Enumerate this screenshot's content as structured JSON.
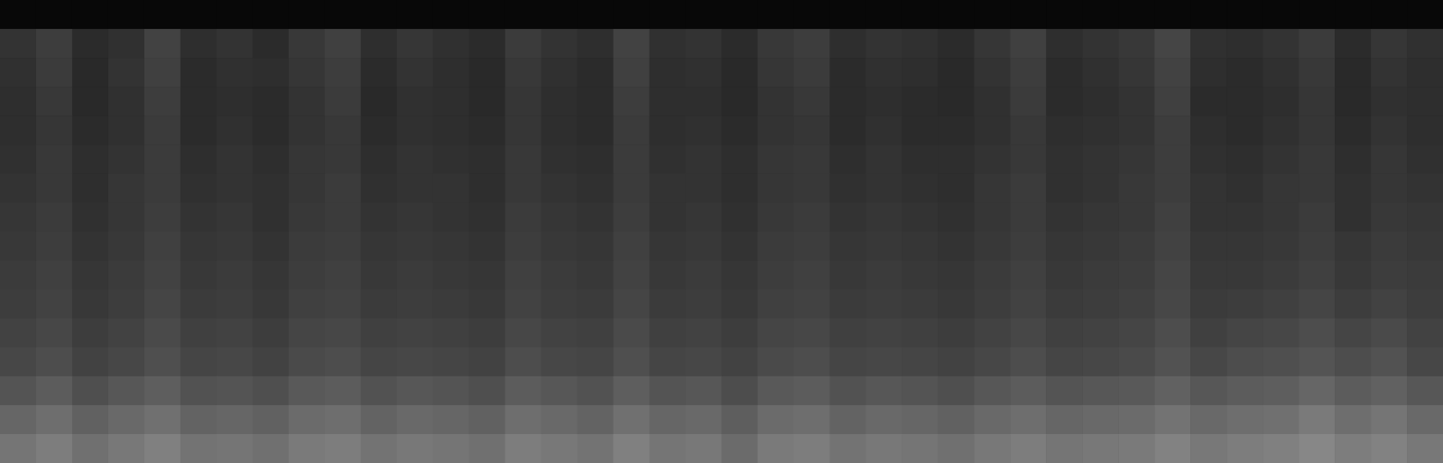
{
  "chart_data": {
    "type": "heatmap",
    "color": "gray",
    "tick_labels": false,
    "zlim": [
      0,
      1
    ],
    "z": [
      [
        0.03,
        0.03,
        0.03,
        0.03,
        0.03,
        0.03,
        0.03,
        0.03,
        0.03,
        0.03,
        0.03,
        0.03,
        0.03,
        0.03,
        0.03,
        0.03,
        0.03,
        0.03,
        0.03,
        0.03,
        0.03,
        0.03,
        0.03,
        0.03,
        0.03,
        0.03,
        0.03,
        0.03,
        0.03,
        0.03,
        0.03,
        0.03,
        0.03,
        0.03,
        0.03,
        0.03,
        0.03,
        0.03,
        0.03,
        0.03
      ],
      [
        0.2,
        0.24,
        0.17,
        0.19,
        0.26,
        0.18,
        0.2,
        0.17,
        0.22,
        0.25,
        0.18,
        0.21,
        0.19,
        0.17,
        0.23,
        0.2,
        0.18,
        0.26,
        0.19,
        0.2,
        0.17,
        0.22,
        0.24,
        0.18,
        0.2,
        0.19,
        0.17,
        0.21,
        0.25,
        0.18,
        0.2,
        0.22,
        0.27,
        0.19,
        0.18,
        0.2,
        0.23,
        0.17,
        0.21,
        0.19
      ],
      [
        0.19,
        0.23,
        0.16,
        0.2,
        0.25,
        0.17,
        0.19,
        0.18,
        0.21,
        0.24,
        0.17,
        0.2,
        0.18,
        0.16,
        0.22,
        0.19,
        0.17,
        0.25,
        0.18,
        0.19,
        0.16,
        0.21,
        0.23,
        0.17,
        0.19,
        0.18,
        0.16,
        0.2,
        0.24,
        0.17,
        0.19,
        0.21,
        0.26,
        0.18,
        0.17,
        0.19,
        0.22,
        0.16,
        0.2,
        0.18
      ],
      [
        0.18,
        0.22,
        0.16,
        0.19,
        0.24,
        0.17,
        0.18,
        0.17,
        0.2,
        0.23,
        0.16,
        0.19,
        0.18,
        0.16,
        0.21,
        0.18,
        0.17,
        0.24,
        0.18,
        0.18,
        0.16,
        0.2,
        0.22,
        0.17,
        0.18,
        0.17,
        0.16,
        0.19,
        0.23,
        0.17,
        0.18,
        0.2,
        0.25,
        0.17,
        0.17,
        0.18,
        0.21,
        0.16,
        0.19,
        0.18
      ],
      [
        0.18,
        0.21,
        0.17,
        0.19,
        0.23,
        0.17,
        0.19,
        0.17,
        0.2,
        0.22,
        0.17,
        0.19,
        0.18,
        0.17,
        0.21,
        0.18,
        0.17,
        0.23,
        0.18,
        0.19,
        0.17,
        0.2,
        0.21,
        0.17,
        0.19,
        0.17,
        0.17,
        0.19,
        0.22,
        0.18,
        0.19,
        0.2,
        0.24,
        0.18,
        0.17,
        0.19,
        0.21,
        0.17,
        0.2,
        0.18
      ],
      [
        0.19,
        0.22,
        0.18,
        0.2,
        0.23,
        0.18,
        0.2,
        0.18,
        0.21,
        0.22,
        0.18,
        0.2,
        0.19,
        0.18,
        0.22,
        0.19,
        0.18,
        0.23,
        0.19,
        0.2,
        0.18,
        0.21,
        0.22,
        0.18,
        0.2,
        0.18,
        0.18,
        0.2,
        0.22,
        0.19,
        0.2,
        0.21,
        0.24,
        0.19,
        0.18,
        0.2,
        0.22,
        0.18,
        0.21,
        0.19
      ],
      [
        0.2,
        0.22,
        0.18,
        0.21,
        0.23,
        0.19,
        0.2,
        0.19,
        0.21,
        0.23,
        0.19,
        0.2,
        0.2,
        0.18,
        0.22,
        0.2,
        0.19,
        0.23,
        0.2,
        0.2,
        0.18,
        0.21,
        0.22,
        0.19,
        0.2,
        0.19,
        0.18,
        0.21,
        0.23,
        0.19,
        0.2,
        0.22,
        0.24,
        0.2,
        0.19,
        0.21,
        0.22,
        0.19,
        0.21,
        0.2
      ],
      [
        0.21,
        0.23,
        0.19,
        0.21,
        0.24,
        0.2,
        0.21,
        0.19,
        0.22,
        0.23,
        0.2,
        0.21,
        0.2,
        0.19,
        0.23,
        0.21,
        0.2,
        0.24,
        0.2,
        0.21,
        0.19,
        0.22,
        0.23,
        0.2,
        0.21,
        0.2,
        0.19,
        0.21,
        0.23,
        0.2,
        0.21,
        0.22,
        0.25,
        0.2,
        0.2,
        0.21,
        0.23,
        0.19,
        0.22,
        0.21
      ],
      [
        0.22,
        0.24,
        0.2,
        0.22,
        0.25,
        0.21,
        0.22,
        0.2,
        0.23,
        0.24,
        0.21,
        0.22,
        0.21,
        0.2,
        0.24,
        0.22,
        0.21,
        0.25,
        0.21,
        0.22,
        0.2,
        0.23,
        0.24,
        0.21,
        0.22,
        0.21,
        0.2,
        0.22,
        0.24,
        0.21,
        0.22,
        0.23,
        0.26,
        0.21,
        0.21,
        0.22,
        0.24,
        0.21,
        0.23,
        0.22
      ],
      [
        0.23,
        0.25,
        0.21,
        0.23,
        0.26,
        0.22,
        0.23,
        0.21,
        0.24,
        0.25,
        0.22,
        0.23,
        0.22,
        0.21,
        0.25,
        0.23,
        0.22,
        0.26,
        0.22,
        0.23,
        0.21,
        0.24,
        0.25,
        0.22,
        0.23,
        0.22,
        0.21,
        0.23,
        0.25,
        0.22,
        0.23,
        0.24,
        0.27,
        0.22,
        0.22,
        0.23,
        0.25,
        0.22,
        0.24,
        0.23
      ],
      [
        0.24,
        0.26,
        0.22,
        0.24,
        0.27,
        0.23,
        0.24,
        0.22,
        0.25,
        0.26,
        0.23,
        0.24,
        0.23,
        0.22,
        0.26,
        0.24,
        0.23,
        0.27,
        0.23,
        0.24,
        0.22,
        0.25,
        0.26,
        0.23,
        0.24,
        0.23,
        0.22,
        0.24,
        0.26,
        0.23,
        0.24,
        0.25,
        0.28,
        0.23,
        0.24,
        0.25,
        0.27,
        0.24,
        0.26,
        0.24
      ],
      [
        0.26,
        0.28,
        0.24,
        0.26,
        0.29,
        0.25,
        0.26,
        0.24,
        0.27,
        0.28,
        0.25,
        0.26,
        0.25,
        0.24,
        0.28,
        0.26,
        0.25,
        0.29,
        0.25,
        0.26,
        0.24,
        0.27,
        0.28,
        0.25,
        0.26,
        0.25,
        0.24,
        0.26,
        0.28,
        0.25,
        0.26,
        0.27,
        0.3,
        0.25,
        0.27,
        0.28,
        0.3,
        0.27,
        0.29,
        0.26
      ],
      [
        0.28,
        0.3,
        0.26,
        0.28,
        0.31,
        0.27,
        0.28,
        0.26,
        0.29,
        0.3,
        0.27,
        0.28,
        0.27,
        0.26,
        0.3,
        0.28,
        0.27,
        0.31,
        0.27,
        0.28,
        0.26,
        0.29,
        0.3,
        0.27,
        0.28,
        0.27,
        0.26,
        0.28,
        0.3,
        0.27,
        0.28,
        0.29,
        0.32,
        0.28,
        0.3,
        0.31,
        0.33,
        0.3,
        0.32,
        0.28
      ],
      [
        0.33,
        0.36,
        0.31,
        0.34,
        0.37,
        0.32,
        0.33,
        0.31,
        0.35,
        0.36,
        0.32,
        0.34,
        0.33,
        0.31,
        0.36,
        0.34,
        0.32,
        0.37,
        0.33,
        0.34,
        0.3,
        0.35,
        0.36,
        0.32,
        0.34,
        0.33,
        0.31,
        0.34,
        0.36,
        0.33,
        0.34,
        0.35,
        0.38,
        0.34,
        0.36,
        0.37,
        0.4,
        0.36,
        0.38,
        0.34
      ],
      [
        0.4,
        0.43,
        0.38,
        0.41,
        0.44,
        0.39,
        0.4,
        0.38,
        0.42,
        0.43,
        0.39,
        0.41,
        0.4,
        0.38,
        0.43,
        0.41,
        0.39,
        0.44,
        0.4,
        0.41,
        0.37,
        0.42,
        0.43,
        0.39,
        0.41,
        0.4,
        0.38,
        0.41,
        0.43,
        0.4,
        0.41,
        0.42,
        0.45,
        0.41,
        0.43,
        0.44,
        0.48,
        0.43,
        0.46,
        0.41
      ],
      [
        0.46,
        0.49,
        0.44,
        0.47,
        0.5,
        0.45,
        0.46,
        0.44,
        0.48,
        0.49,
        0.45,
        0.47,
        0.46,
        0.44,
        0.49,
        0.47,
        0.45,
        0.5,
        0.46,
        0.47,
        0.42,
        0.48,
        0.49,
        0.45,
        0.47,
        0.46,
        0.44,
        0.47,
        0.49,
        0.46,
        0.47,
        0.48,
        0.51,
        0.47,
        0.49,
        0.5,
        0.53,
        0.49,
        0.51,
        0.47
      ]
    ]
  }
}
